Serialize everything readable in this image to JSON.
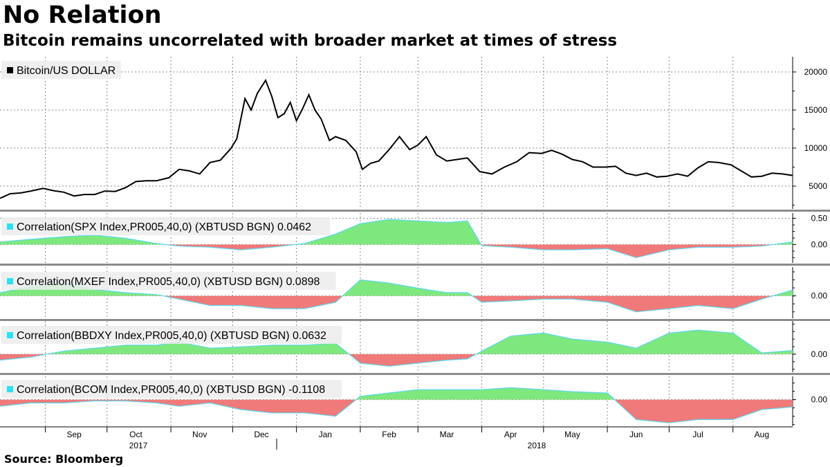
{
  "title": "No Relation",
  "subtitle": "Bitcoin remains uncorrelated with broader market at times of stress",
  "source": "Source:  Bloomberg",
  "colors": {
    "price_line": "#000000",
    "positive_fill": "#7ee87e",
    "negative_fill": "#f07a7a",
    "corr_line": "#5ad8f0",
    "legend_swatch_corr": "#28e3f2",
    "separator": "#8c8c8c",
    "grid": "#888888"
  },
  "x_axis": {
    "months": [
      "Sep",
      "Oct",
      "Nov",
      "Dec",
      "Jan",
      "Feb",
      "Mar",
      "Apr",
      "May",
      "Jun",
      "Jul",
      "Aug"
    ],
    "years": [
      "2017",
      "2018"
    ]
  },
  "chart_data": [
    {
      "type": "line",
      "legend": "Bitcoin/US DOLLAR",
      "ylim": [
        2000,
        22000
      ],
      "yticks": [
        "20000",
        "15000",
        "10000",
        "5000"
      ],
      "x_range": [
        "2017-08-10",
        "2018-08-30"
      ],
      "x": [
        "2017-08-10",
        "2017-08-15",
        "2017-08-20",
        "2017-08-25",
        "2017-08-31",
        "2017-09-05",
        "2017-09-10",
        "2017-09-15",
        "2017-09-20",
        "2017-09-25",
        "2017-09-30",
        "2017-10-05",
        "2017-10-10",
        "2017-10-15",
        "2017-10-20",
        "2017-10-25",
        "2017-10-31",
        "2017-11-05",
        "2017-11-10",
        "2017-11-15",
        "2017-11-20",
        "2017-11-25",
        "2017-11-30",
        "2017-12-03",
        "2017-12-07",
        "2017-12-10",
        "2017-12-13",
        "2017-12-17",
        "2017-12-20",
        "2017-12-23",
        "2017-12-26",
        "2017-12-29",
        "2018-01-01",
        "2018-01-04",
        "2018-01-07",
        "2018-01-10",
        "2018-01-13",
        "2018-01-17",
        "2018-01-20",
        "2018-01-25",
        "2018-01-30",
        "2018-02-02",
        "2018-02-06",
        "2018-02-10",
        "2018-02-15",
        "2018-02-20",
        "2018-02-25",
        "2018-03-01",
        "2018-03-05",
        "2018-03-10",
        "2018-03-15",
        "2018-03-20",
        "2018-03-25",
        "2018-03-31",
        "2018-04-06",
        "2018-04-12",
        "2018-04-18",
        "2018-04-24",
        "2018-04-30",
        "2018-05-05",
        "2018-05-10",
        "2018-05-15",
        "2018-05-20",
        "2018-05-25",
        "2018-05-31",
        "2018-06-05",
        "2018-06-10",
        "2018-06-15",
        "2018-06-20",
        "2018-06-25",
        "2018-06-30",
        "2018-07-05",
        "2018-07-10",
        "2018-07-15",
        "2018-07-20",
        "2018-07-25",
        "2018-07-31",
        "2018-08-05",
        "2018-08-10",
        "2018-08-15",
        "2018-08-20",
        "2018-08-25",
        "2018-08-30"
      ],
      "series": [
        {
          "values": [
            3400,
            4000,
            4100,
            4350,
            4700,
            4400,
            4200,
            3700,
            3900,
            3900,
            4350,
            4300,
            4800,
            5600,
            5700,
            5700,
            6100,
            7200,
            7000,
            6600,
            8100,
            8400,
            9900,
            11200,
            16500,
            15000,
            17200,
            18900,
            16800,
            14000,
            14500,
            16000,
            13600,
            15200,
            17000,
            15000,
            13800,
            11000,
            11500,
            11000,
            9500,
            7200,
            8000,
            8300,
            9800,
            11500,
            9800,
            10400,
            11500,
            9100,
            8300,
            8500,
            8700,
            6900,
            6600,
            7500,
            8200,
            9400,
            9300,
            9700,
            9200,
            8500,
            8200,
            7500,
            7500,
            7600,
            6700,
            6400,
            6700,
            6200,
            6300,
            6600,
            6300,
            7400,
            8200,
            8100,
            7800,
            7000,
            6200,
            6300,
            6700,
            6600,
            6400
          ]
        }
      ]
    },
    {
      "type": "area",
      "legend": "Correlation(SPX Index,PR005,40,0) (XBTUSD BGN) 0.0462",
      "last_value": 0.0462,
      "ylim": [
        -0.35,
        0.6
      ],
      "yticks": [
        "0.50",
        "0.00"
      ],
      "x_range": [
        "2017-08-10",
        "2018-08-30"
      ],
      "x": [
        "2017-08-10",
        "2017-08-25",
        "2017-09-10",
        "2017-09-25",
        "2017-10-10",
        "2017-10-25",
        "2017-11-05",
        "2017-11-20",
        "2017-12-05",
        "2017-12-20",
        "2018-01-05",
        "2018-01-20",
        "2018-02-01",
        "2018-02-15",
        "2018-03-01",
        "2018-03-15",
        "2018-03-25",
        "2018-04-01",
        "2018-04-15",
        "2018-05-01",
        "2018-05-15",
        "2018-06-01",
        "2018-06-15",
        "2018-07-01",
        "2018-07-15",
        "2018-08-01",
        "2018-08-15",
        "2018-08-30"
      ],
      "series": [
        {
          "values": [
            0.05,
            0.1,
            0.15,
            0.18,
            0.12,
            0.02,
            -0.03,
            -0.05,
            -0.1,
            -0.05,
            0.02,
            0.2,
            0.4,
            0.48,
            0.45,
            0.42,
            0.45,
            -0.02,
            -0.05,
            -0.1,
            -0.1,
            -0.08,
            -0.25,
            -0.1,
            -0.05,
            -0.05,
            -0.03,
            0.05
          ]
        }
      ]
    },
    {
      "type": "area",
      "legend": "Correlation(MXEF Index,PR005,40,0) (XBTUSD BGN) 0.0898",
      "last_value": 0.0898,
      "ylim": [
        -0.35,
        0.45
      ],
      "yticks": [
        "0.00"
      ],
      "x_range": [
        "2017-08-10",
        "2018-08-30"
      ],
      "x": [
        "2017-08-10",
        "2017-08-25",
        "2017-09-10",
        "2017-09-25",
        "2017-10-10",
        "2017-10-25",
        "2017-11-05",
        "2017-11-20",
        "2017-12-05",
        "2017-12-20",
        "2018-01-05",
        "2018-01-20",
        "2018-02-01",
        "2018-02-15",
        "2018-03-01",
        "2018-03-15",
        "2018-03-25",
        "2018-04-01",
        "2018-04-15",
        "2018-05-01",
        "2018-05-15",
        "2018-06-01",
        "2018-06-15",
        "2018-07-01",
        "2018-07-15",
        "2018-08-01",
        "2018-08-15",
        "2018-08-30"
      ],
      "series": [
        {
          "values": [
            0.05,
            0.15,
            0.2,
            0.1,
            0.05,
            0.02,
            -0.05,
            -0.15,
            -0.15,
            -0.2,
            -0.2,
            -0.1,
            0.25,
            0.2,
            0.12,
            0.05,
            0.05,
            -0.1,
            -0.08,
            -0.05,
            -0.05,
            -0.1,
            -0.25,
            -0.2,
            -0.15,
            -0.2,
            -0.05,
            0.09
          ]
        }
      ]
    },
    {
      "type": "area",
      "legend": "Correlation(BBDXY Index,PR005,40,0) (XBTUSD BGN) 0.0632",
      "last_value": 0.0632,
      "ylim": [
        -0.3,
        0.55
      ],
      "yticks": [
        "0.00"
      ],
      "x_range": [
        "2017-08-10",
        "2018-08-30"
      ],
      "x": [
        "2017-08-10",
        "2017-08-25",
        "2017-09-10",
        "2017-09-25",
        "2017-10-10",
        "2017-10-25",
        "2017-11-05",
        "2017-11-20",
        "2017-12-05",
        "2017-12-20",
        "2018-01-05",
        "2018-01-20",
        "2018-02-01",
        "2018-02-15",
        "2018-03-01",
        "2018-03-15",
        "2018-03-25",
        "2018-04-01",
        "2018-04-15",
        "2018-05-01",
        "2018-05-15",
        "2018-06-01",
        "2018-06-15",
        "2018-07-01",
        "2018-07-15",
        "2018-08-01",
        "2018-08-15",
        "2018-08-30"
      ],
      "series": [
        {
          "values": [
            -0.1,
            -0.05,
            0.05,
            0.1,
            0.15,
            0.15,
            0.2,
            0.1,
            0.12,
            0.15,
            0.15,
            0.18,
            -0.15,
            -0.2,
            -0.15,
            -0.1,
            -0.08,
            0.05,
            0.3,
            0.35,
            0.25,
            0.2,
            0.1,
            0.35,
            0.4,
            0.35,
            0.02,
            0.06
          ]
        }
      ]
    },
    {
      "type": "area",
      "legend": "Correlation(BCOM Index,PR005,40,0) (XBTUSD BGN) -0.1108",
      "last_value": -0.1108,
      "ylim": [
        -0.4,
        0.35
      ],
      "yticks": [
        "0.00"
      ],
      "x_range": [
        "2017-08-10",
        "2018-08-30"
      ],
      "x": [
        "2017-08-10",
        "2017-08-25",
        "2017-09-10",
        "2017-09-25",
        "2017-10-10",
        "2017-10-25",
        "2017-11-05",
        "2017-11-20",
        "2017-12-05",
        "2017-12-20",
        "2018-01-05",
        "2018-01-20",
        "2018-02-01",
        "2018-02-15",
        "2018-03-01",
        "2018-03-15",
        "2018-03-25",
        "2018-04-01",
        "2018-04-15",
        "2018-05-01",
        "2018-05-15",
        "2018-06-01",
        "2018-06-15",
        "2018-07-01",
        "2018-07-15",
        "2018-08-01",
        "2018-08-15",
        "2018-08-30"
      ],
      "series": [
        {
          "values": [
            -0.1,
            -0.05,
            -0.05,
            -0.02,
            -0.02,
            -0.05,
            -0.1,
            -0.05,
            -0.15,
            -0.2,
            -0.2,
            -0.25,
            0.05,
            0.1,
            0.15,
            0.15,
            0.15,
            0.15,
            0.18,
            0.15,
            0.12,
            0.1,
            -0.3,
            -0.35,
            -0.3,
            -0.3,
            -0.15,
            -0.11
          ]
        }
      ]
    }
  ]
}
